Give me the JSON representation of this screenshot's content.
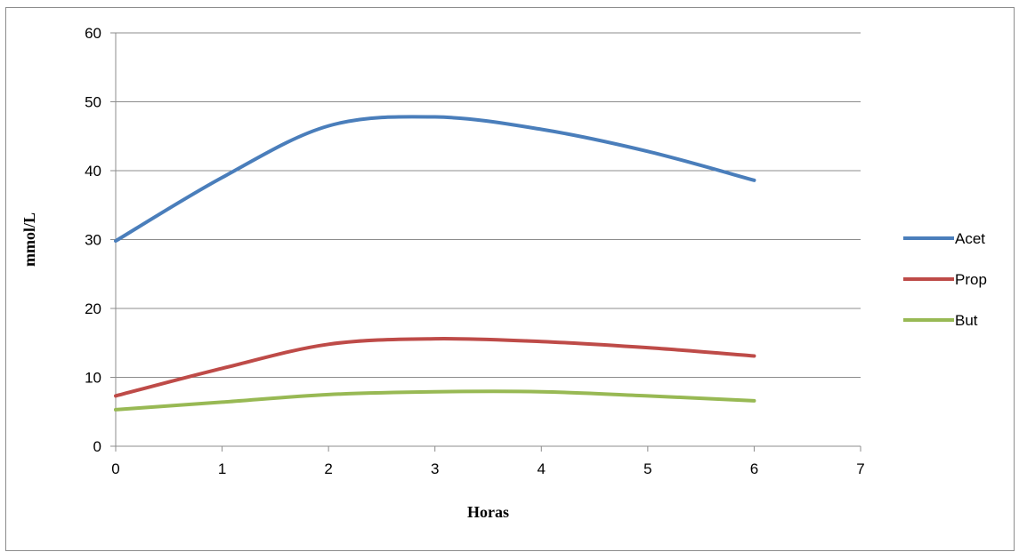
{
  "chart_data": {
    "type": "line",
    "smooth": true,
    "title": "",
    "xlabel": "Horas",
    "ylabel": "mmol/L",
    "xlim": [
      0,
      7
    ],
    "ylim": [
      0,
      60
    ],
    "xticks": [
      "0",
      "1",
      "2",
      "3",
      "4",
      "5",
      "6",
      "7"
    ],
    "yticks": [
      "0",
      "10",
      "20",
      "30",
      "40",
      "50",
      "60"
    ],
    "grid": "horizontal",
    "legend_position": "right",
    "x": [
      0,
      1,
      2,
      3,
      4,
      5,
      6
    ],
    "series": [
      {
        "name": "Acet",
        "color": "#4a7ebb",
        "values": [
          29.8,
          39,
          46.5,
          47.8,
          46,
          42.8,
          38.6
        ]
      },
      {
        "name": "Prop",
        "color": "#be4b48",
        "values": [
          7.3,
          11.3,
          14.8,
          15.6,
          15.2,
          14.3,
          13.1
        ]
      },
      {
        "name": "But",
        "color": "#98b954",
        "values": [
          5.3,
          6.4,
          7.5,
          7.9,
          7.9,
          7.3,
          6.6
        ]
      }
    ]
  }
}
